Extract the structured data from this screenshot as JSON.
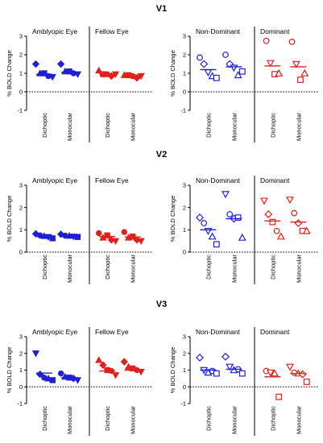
{
  "colors": {
    "blue": "#1f1fd6",
    "red": "#e0201b",
    "axis": "#000000"
  },
  "chart_data": [
    {
      "type": "scatter",
      "row": "V1",
      "title": "V1",
      "ylabel": "% BOLD Change",
      "ylim": [
        -1,
        3
      ],
      "yticks": [
        "-1",
        "0",
        "1",
        "2",
        "3"
      ],
      "groups": [
        {
          "side": "left",
          "label": "Amblyopic Eye",
          "color": "blue",
          "filled": true,
          "categories": [
            "Dichoptic",
            "Monocular"
          ],
          "mean": [
            0.95,
            1.05
          ],
          "points": [
            [
              {
                "shape": "diamond",
                "y": 1.5
              },
              {
                "shape": "triangle",
                "y": 1.0
              },
              {
                "shape": "square",
                "y": 1.0
              },
              {
                "shape": "circle",
                "y": 0.85
              },
              {
                "shape": "invtriangle",
                "y": 0.8
              }
            ],
            [
              {
                "shape": "diamond",
                "y": 1.5
              },
              {
                "shape": "triangle",
                "y": 1.1
              },
              {
                "shape": "square",
                "y": 1.1
              },
              {
                "shape": "circle",
                "y": 1.0
              },
              {
                "shape": "invtriangle",
                "y": 0.95
              }
            ]
          ]
        },
        {
          "side": "right",
          "label": "Fellow Eye",
          "color": "red",
          "filled": true,
          "categories": [
            "Dichoptic",
            "Monocular"
          ],
          "mean": [
            0.95,
            0.9
          ],
          "points": [
            [
              {
                "shape": "triangle",
                "y": 1.15
              },
              {
                "shape": "square",
                "y": 0.95
              },
              {
                "shape": "circle",
                "y": 0.95
              },
              {
                "shape": "diamond",
                "y": 0.85
              },
              {
                "shape": "invtriangle",
                "y": 0.95
              }
            ],
            [
              {
                "shape": "triangle",
                "y": 0.9
              },
              {
                "shape": "square",
                "y": 0.9
              },
              {
                "shape": "circle",
                "y": 0.85
              },
              {
                "shape": "diamond",
                "y": 0.75
              },
              {
                "shape": "invtriangle",
                "y": 0.85
              }
            ]
          ]
        },
        {
          "side": "left",
          "label": "Non-Dominant",
          "color": "blue",
          "filled": false,
          "categories": [
            "Dichoptic",
            "Monocular"
          ],
          "mean": [
            1.2,
            1.35
          ],
          "points": [
            [
              {
                "shape": "circle",
                "y": 1.85
              },
              {
                "shape": "diamond",
                "y": 1.5
              },
              {
                "shape": "invtriangle",
                "y": 1.05
              },
              {
                "shape": "triangle",
                "y": 0.85
              },
              {
                "shape": "square",
                "y": 0.75
              }
            ],
            [
              {
                "shape": "circle",
                "y": 2.0
              },
              {
                "shape": "diamond",
                "y": 1.5
              },
              {
                "shape": "invtriangle",
                "y": 1.3
              },
              {
                "shape": "triangle",
                "y": 0.9
              },
              {
                "shape": "square",
                "y": 1.1
              }
            ]
          ]
        },
        {
          "side": "right",
          "label": "Dominant",
          "color": "red",
          "filled": false,
          "categories": [
            "Dichoptic",
            "Monocular"
          ],
          "mean": [
            1.4,
            1.35
          ],
          "points": [
            [
              {
                "shape": "circle",
                "y": 2.75
              },
              {
                "shape": "invtriangle",
                "y": 1.55
              },
              {
                "shape": "square",
                "y": 0.95
              },
              {
                "shape": "triangle",
                "y": 1.0
              }
            ],
            [
              {
                "shape": "circle",
                "y": 2.7
              },
              {
                "shape": "invtriangle",
                "y": 1.5
              },
              {
                "shape": "square",
                "y": 0.65
              },
              {
                "shape": "triangle",
                "y": 1.0
              }
            ]
          ]
        }
      ]
    },
    {
      "type": "scatter",
      "row": "V2",
      "title": "V2",
      "ylabel": "% BOLD Change",
      "ylim": [
        0,
        3
      ],
      "yticks": [
        "0",
        "1",
        "2",
        "3"
      ],
      "groups": [
        {
          "side": "left",
          "label": "Amblyopic Eye",
          "color": "blue",
          "filled": true,
          "categories": [
            "Dichoptic",
            "Monocular"
          ],
          "mean": [
            0.72,
            0.72
          ],
          "points": [
            [
              {
                "shape": "diamond",
                "y": 0.82
              },
              {
                "shape": "circle",
                "y": 0.75
              },
              {
                "shape": "triangle",
                "y": 0.72
              },
              {
                "shape": "invtriangle",
                "y": 0.68
              },
              {
                "shape": "square",
                "y": 0.62
              }
            ],
            [
              {
                "shape": "diamond",
                "y": 0.8
              },
              {
                "shape": "circle",
                "y": 0.74
              },
              {
                "shape": "triangle",
                "y": 0.73
              },
              {
                "shape": "invtriangle",
                "y": 0.7
              },
              {
                "shape": "square",
                "y": 0.68
              }
            ]
          ]
        },
        {
          "side": "right",
          "label": "Fellow Eye",
          "color": "red",
          "filled": true,
          "categories": [
            "Dichoptic",
            "Monocular"
          ],
          "mean": [
            0.7,
            0.68
          ],
          "points": [
            [
              {
                "shape": "circle",
                "y": 0.85
              },
              {
                "shape": "triangle",
                "y": 0.65
              },
              {
                "shape": "square",
                "y": 0.75
              },
              {
                "shape": "diamond",
                "y": 0.55
              },
              {
                "shape": "invtriangle",
                "y": 0.5
              }
            ],
            [
              {
                "shape": "circle",
                "y": 0.9
              },
              {
                "shape": "triangle",
                "y": 0.65
              },
              {
                "shape": "square",
                "y": 0.7
              },
              {
                "shape": "diamond",
                "y": 0.55
              },
              {
                "shape": "invtriangle",
                "y": 0.5
              }
            ]
          ]
        },
        {
          "side": "left",
          "label": "Non-Dominant",
          "color": "blue",
          "filled": false,
          "categories": [
            "Dichoptic",
            "Monocular"
          ],
          "mean": [
            1.0,
            1.5
          ],
          "points": [
            [
              {
                "shape": "diamond",
                "y": 1.55
              },
              {
                "shape": "circle",
                "y": 1.3
              },
              {
                "shape": "invtriangle",
                "y": 0.95
              },
              {
                "shape": "triangle",
                "y": 0.7
              },
              {
                "shape": "square",
                "y": 0.35
              }
            ],
            [
              {
                "shape": "invtriangle",
                "y": 2.6
              },
              {
                "shape": "circle",
                "y": 1.7
              },
              {
                "shape": "diamond",
                "y": 1.5
              },
              {
                "shape": "square",
                "y": 1.55
              },
              {
                "shape": "triangle",
                "y": 0.65
              }
            ]
          ]
        },
        {
          "side": "right",
          "label": "Dominant",
          "color": "red",
          "filled": false,
          "categories": [
            "Dichoptic",
            "Monocular"
          ],
          "mean": [
            1.4,
            1.35
          ],
          "points": [
            [
              {
                "shape": "invtriangle",
                "y": 2.3
              },
              {
                "shape": "diamond",
                "y": 1.7
              },
              {
                "shape": "square",
                "y": 1.35
              },
              {
                "shape": "circle",
                "y": 0.95
              },
              {
                "shape": "triangle",
                "y": 0.7
              }
            ],
            [
              {
                "shape": "invtriangle",
                "y": 2.35
              },
              {
                "shape": "circle",
                "y": 1.75
              },
              {
                "shape": "diamond",
                "y": 1.3
              },
              {
                "shape": "square",
                "y": 0.95
              },
              {
                "shape": "triangle",
                "y": 0.95
              }
            ]
          ]
        }
      ]
    },
    {
      "type": "scatter",
      "row": "V3",
      "title": "V3",
      "ylabel": "% BOLD Change",
      "ylim": [
        -1,
        3
      ],
      "yticks": [
        "-1",
        "0",
        "1",
        "2",
        "3"
      ],
      "groups": [
        {
          "side": "left",
          "label": "Amblyopic Eye",
          "color": "blue",
          "filled": true,
          "categories": [
            "Dichoptic",
            "Monocular"
          ],
          "mean": [
            0.82,
            0.55
          ],
          "points": [
            [
              {
                "shape": "invtriangle",
                "y": 2.0
              },
              {
                "shape": "diamond",
                "y": 0.75
              },
              {
                "shape": "circle",
                "y": 0.55
              },
              {
                "shape": "triangle",
                "y": 0.5
              },
              {
                "shape": "square",
                "y": 0.4
              }
            ],
            [
              {
                "shape": "circle",
                "y": 0.8
              },
              {
                "shape": "triangle",
                "y": 0.6
              },
              {
                "shape": "square",
                "y": 0.55
              },
              {
                "shape": "diamond",
                "y": 0.5
              },
              {
                "shape": "invtriangle",
                "y": 0.4
              }
            ]
          ]
        },
        {
          "side": "right",
          "label": "Fellow Eye",
          "color": "red",
          "filled": true,
          "categories": [
            "Dichoptic",
            "Monocular"
          ],
          "mean": [
            0.95,
            1.0
          ],
          "points": [
            [
              {
                "shape": "triangle",
                "y": 1.6
              },
              {
                "shape": "diamond",
                "y": 1.3
              },
              {
                "shape": "square",
                "y": 1.0
              },
              {
                "shape": "circle",
                "y": 0.95
              },
              {
                "shape": "invtriangle",
                "y": 0.7
              }
            ],
            [
              {
                "shape": "diamond",
                "y": 1.5
              },
              {
                "shape": "triangle",
                "y": 1.2
              },
              {
                "shape": "square",
                "y": 1.1
              },
              {
                "shape": "circle",
                "y": 1.0
              },
              {
                "shape": "invtriangle",
                "y": 0.9
              }
            ]
          ]
        },
        {
          "side": "left",
          "label": "Non-Dominant",
          "color": "blue",
          "filled": false,
          "categories": [
            "Dichoptic",
            "Monocular"
          ],
          "mean": [
            1.0,
            1.05
          ],
          "points": [
            [
              {
                "shape": "diamond",
                "y": 1.75
              },
              {
                "shape": "invtriangle",
                "y": 1.0
              },
              {
                "shape": "triangle",
                "y": 0.85
              },
              {
                "shape": "circle",
                "y": 0.95
              },
              {
                "shape": "square",
                "y": 0.8
              }
            ],
            [
              {
                "shape": "diamond",
                "y": 1.8
              },
              {
                "shape": "invtriangle",
                "y": 1.2
              },
              {
                "shape": "triangle",
                "y": 1.0
              },
              {
                "shape": "circle",
                "y": 1.05
              },
              {
                "shape": "square",
                "y": 0.8
              }
            ]
          ]
        },
        {
          "side": "right",
          "label": "Dominant",
          "color": "red",
          "filled": false,
          "categories": [
            "Dichoptic",
            "Monocular"
          ],
          "mean": [
            0.6,
            0.8
          ],
          "points": [
            [
              {
                "shape": "circle",
                "y": 0.95
              },
              {
                "shape": "invtriangle",
                "y": 0.85
              },
              {
                "shape": "triangle",
                "y": 0.8
              },
              {
                "shape": "square",
                "y": -0.6
              }
            ],
            [
              {
                "shape": "invtriangle",
                "y": 1.2
              },
              {
                "shape": "circle",
                "y": 0.85
              },
              {
                "shape": "triangle",
                "y": 0.8
              },
              {
                "shape": "diamond",
                "y": 0.75
              },
              {
                "shape": "square",
                "y": 0.3
              }
            ]
          ]
        }
      ]
    }
  ]
}
